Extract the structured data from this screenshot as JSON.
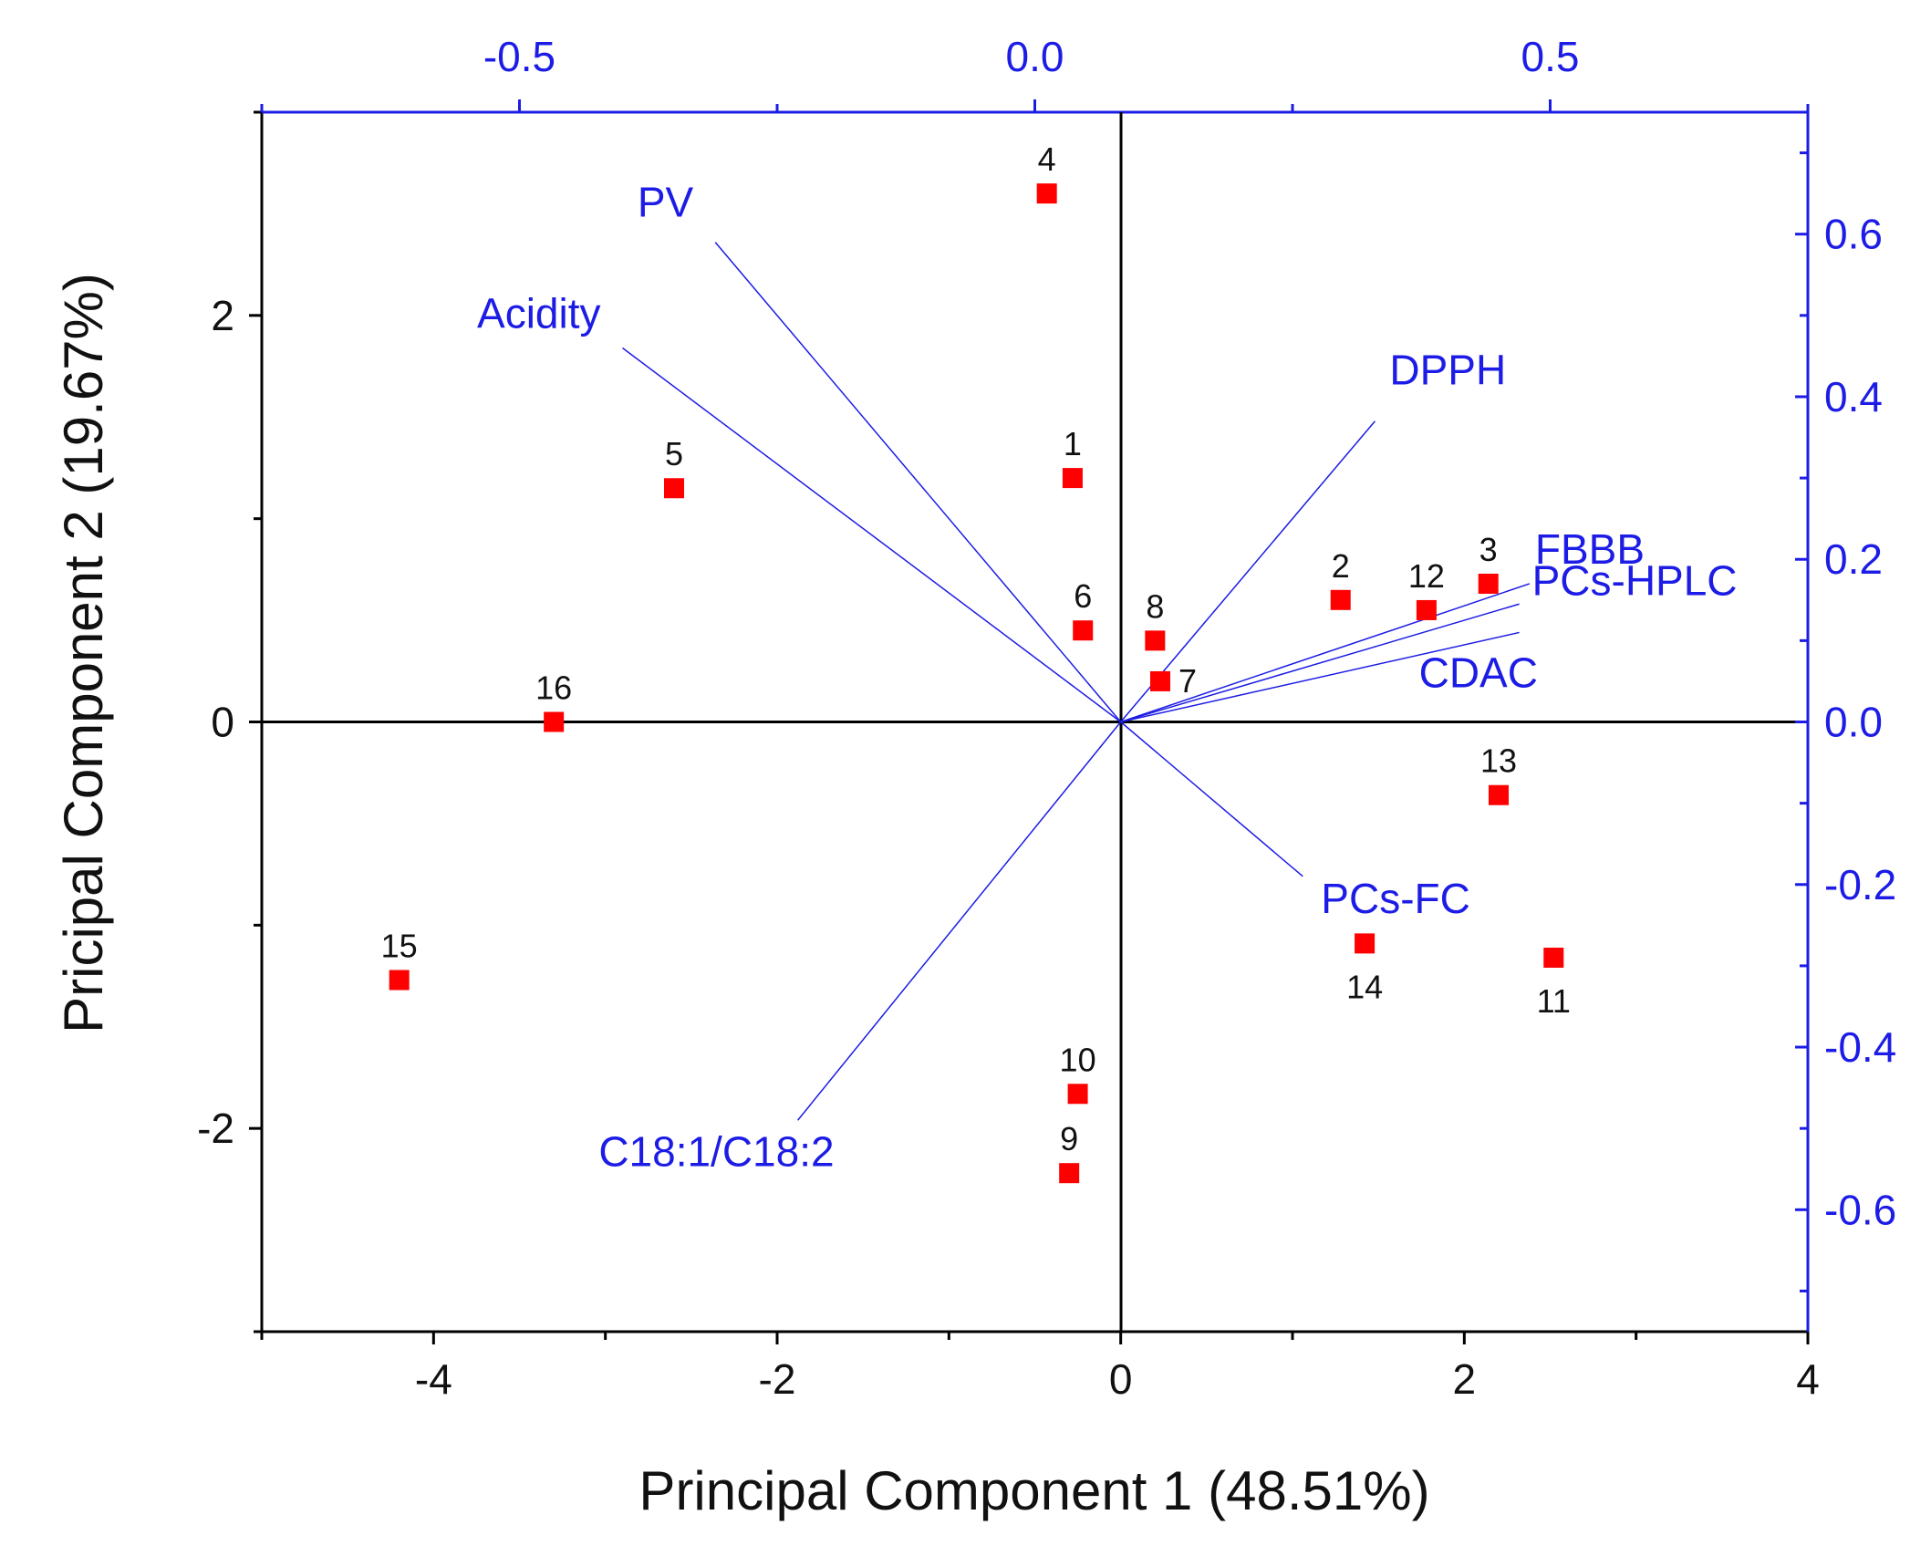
{
  "chart_data": {
    "type": "scatter",
    "subtype": "pca-biplot",
    "xlabel": "Principal Component 1 (48.51%)",
    "ylabel": "Pricipal Component 2 (19.67%)",
    "xlim": [
      -5,
      4
    ],
    "ylim": [
      -3,
      3
    ],
    "xticks": [
      -4,
      -2,
      0,
      2,
      4
    ],
    "xtick_labels": [
      "-4",
      "-2",
      "0",
      "2",
      "4"
    ],
    "yticks": [
      -2,
      0,
      2
    ],
    "ytick_labels": [
      "-2",
      "0",
      "2"
    ],
    "top_axis": {
      "range": [
        -0.75,
        0.75
      ],
      "ticks": [
        -0.5,
        0.0,
        0.5
      ],
      "tick_labels": [
        "-0.5",
        "0.0",
        "0.5"
      ]
    },
    "right_axis": {
      "range": [
        -0.75,
        0.75
      ],
      "ticks": [
        0.6,
        0.4,
        0.2,
        0.0,
        -0.2,
        -0.4,
        -0.6
      ],
      "tick_labels": [
        "0.6",
        "0.4",
        "0.2",
        "0.0",
        "-0.2",
        "-0.4",
        "-0.6"
      ]
    },
    "colors": {
      "points": "#ff0000",
      "loadings": "#1c1ce6",
      "axes": "#000000",
      "secondary_axes": "#1c1ce6"
    },
    "points": [
      {
        "label": "1",
        "x": -0.28,
        "y": 1.2
      },
      {
        "label": "2",
        "x": 1.28,
        "y": 0.6
      },
      {
        "label": "3",
        "x": 2.14,
        "y": 0.68
      },
      {
        "label": "4",
        "x": -0.43,
        "y": 2.6
      },
      {
        "label": "5",
        "x": -2.6,
        "y": 1.15
      },
      {
        "label": "6",
        "x": -0.22,
        "y": 0.45
      },
      {
        "label": "7",
        "x": 0.23,
        "y": 0.2
      },
      {
        "label": "8",
        "x": 0.2,
        "y": 0.4
      },
      {
        "label": "9",
        "x": -0.3,
        "y": -2.22
      },
      {
        "label": "10",
        "x": -0.25,
        "y": -1.83
      },
      {
        "label": "11",
        "x": 2.52,
        "y": -1.16
      },
      {
        "label": "12",
        "x": 1.78,
        "y": 0.55
      },
      {
        "label": "13",
        "x": 2.2,
        "y": -0.36
      },
      {
        "label": "14",
        "x": 1.42,
        "y": -1.09
      },
      {
        "label": "15",
        "x": -4.2,
        "y": -1.27
      },
      {
        "label": "16",
        "x": -3.3,
        "y": 0.0
      }
    ],
    "loadings": [
      {
        "label": "PV",
        "x": -0.31,
        "y": 0.59
      },
      {
        "label": "Acidity",
        "x": -0.4,
        "y": 0.46
      },
      {
        "label": "DPPH",
        "x": 0.33,
        "y": 0.37
      },
      {
        "label": "FBBB",
        "x": 0.48,
        "y": 0.17
      },
      {
        "label": "PCs-HPLC",
        "x": 0.47,
        "y": 0.145
      },
      {
        "label": "CDAC",
        "x": 0.47,
        "y": 0.11
      },
      {
        "label": "PCs-FC",
        "x": 0.26,
        "y": -0.19
      },
      {
        "label": "C18:1/C18:2",
        "x": -0.23,
        "y": -0.49
      }
    ]
  }
}
